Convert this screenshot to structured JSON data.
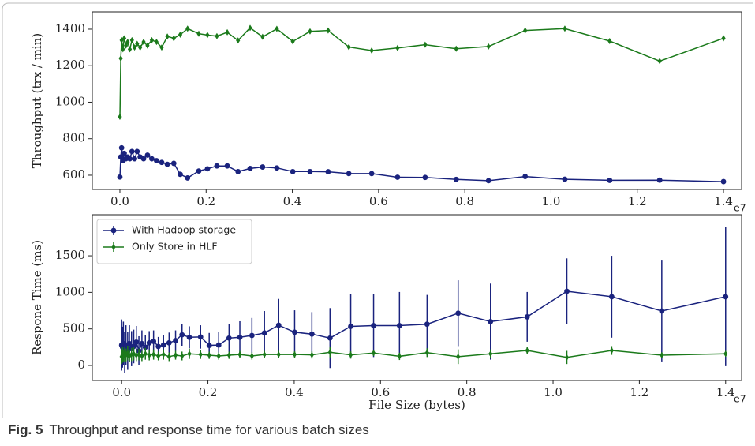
{
  "chart_data": [
    {
      "type": "line",
      "ylabel": "Throughput (trx / min)",
      "x_offset_label": "e7",
      "x": [
        0.0,
        0.002,
        0.004,
        0.007,
        0.01,
        0.014,
        0.018,
        0.023,
        0.028,
        0.034,
        0.04,
        0.047,
        0.055,
        0.064,
        0.074,
        0.085,
        0.097,
        0.11,
        0.125,
        0.14,
        0.157,
        0.183,
        0.203,
        0.225,
        0.249,
        0.274,
        0.302,
        0.331,
        0.364,
        0.401,
        0.441,
        0.483,
        0.531,
        0.584,
        0.644,
        0.708,
        0.78,
        0.855,
        0.94,
        1.032,
        1.136,
        1.252,
        1.4
      ],
      "xlim": [
        -0.064,
        1.442
      ],
      "xticks": [
        {
          "value": 0,
          "label": "0.0"
        },
        0.2,
        0.4,
        0.6,
        0.8,
        {
          "value": 1,
          "label": "1.0"
        },
        1.2,
        1.4
      ],
      "ylim": [
        522,
        1495
      ],
      "yticks": [
        600,
        800,
        1000,
        1200,
        1400
      ],
      "series": [
        {
          "name": "With Hadoop storage",
          "color": "#1a237e",
          "marker": "circle",
          "values": [
            590,
            700,
            750,
            680,
            720,
            690,
            700,
            690,
            730,
            690,
            730,
            700,
            690,
            710,
            690,
            680,
            670,
            660,
            665,
            605,
            585,
            623,
            635,
            651,
            651,
            620,
            637,
            645,
            640,
            620,
            620,
            619,
            609,
            609,
            589,
            588,
            577,
            570,
            593,
            578,
            572,
            573,
            565
          ]
        },
        {
          "name": "Only Store in HLF",
          "color": "#1b7a1b",
          "marker": "diamond",
          "values": [
            920,
            1240,
            1340,
            1290,
            1350,
            1310,
            1330,
            1290,
            1340,
            1300,
            1320,
            1300,
            1330,
            1310,
            1340,
            1330,
            1300,
            1360,
            1350,
            1370,
            1403,
            1375,
            1368,
            1362,
            1383,
            1338,
            1407,
            1358,
            1402,
            1333,
            1388,
            1393,
            1302,
            1283,
            1297,
            1315,
            1293,
            1305,
            1393,
            1403,
            1335,
            1225,
            1350
          ]
        }
      ]
    },
    {
      "type": "line",
      "ylabel": "Respone Time (ms)",
      "xlabel": "File Size (bytes)",
      "x_offset_label": "e7",
      "legend": "upper left",
      "x": [
        0.0,
        0.002,
        0.004,
        0.007,
        0.01,
        0.014,
        0.018,
        0.023,
        0.028,
        0.034,
        0.04,
        0.047,
        0.055,
        0.064,
        0.074,
        0.085,
        0.097,
        0.11,
        0.125,
        0.14,
        0.157,
        0.183,
        0.203,
        0.225,
        0.249,
        0.274,
        0.302,
        0.331,
        0.364,
        0.401,
        0.441,
        0.483,
        0.531,
        0.584,
        0.644,
        0.708,
        0.78,
        0.855,
        0.94,
        1.032,
        1.136,
        1.252,
        1.4
      ],
      "xlim": [
        -0.068,
        1.437
      ],
      "xticks": [
        {
          "value": 0,
          "label": "0.0"
        },
        0.2,
        0.4,
        0.6,
        0.8,
        {
          "value": 1,
          "label": "1.0"
        },
        1.2,
        1.4
      ],
      "ylim": [
        -205,
        2062
      ],
      "yticks": [
        0,
        500,
        1000,
        1500
      ],
      "series": [
        {
          "name": "With Hadoop storage",
          "color": "#1a237e",
          "marker": "circle",
          "values": [
            280,
            250,
            300,
            180,
            280,
            200,
            300,
            230,
            260,
            320,
            200,
            300,
            250,
            310,
            330,
            260,
            280,
            310,
            340,
            420,
            385,
            390,
            275,
            280,
            375,
            385,
            410,
            445,
            550,
            455,
            430,
            375,
            535,
            545,
            545,
            565,
            715,
            600,
            665,
            1015,
            940,
            745,
            940
          ],
          "errors": [
            350,
            280,
            300,
            280,
            270,
            260,
            250,
            240,
            230,
            220,
            200,
            180,
            170,
            160,
            150,
            130,
            140,
            140,
            140,
            150,
            150,
            160,
            170,
            180,
            190,
            220,
            240,
            300,
            360,
            300,
            300,
            410,
            440,
            430,
            460,
            400,
            450,
            520,
            340,
            450,
            560,
            690,
            950
          ]
        },
        {
          "name": "Only Store in HLF",
          "color": "#1b7a1b",
          "marker": "diamond",
          "values": [
            120,
            150,
            130,
            160,
            140,
            170,
            130,
            150,
            160,
            140,
            150,
            130,
            160,
            140,
            150,
            130,
            150,
            120,
            140,
            130,
            160,
            150,
            140,
            130,
            140,
            150,
            130,
            150,
            150,
            150,
            145,
            180,
            145,
            170,
            125,
            175,
            120,
            160,
            205,
            110,
            205,
            140,
            160
          ],
          "errors": [
            100,
            110,
            90,
            100,
            90,
            100,
            80,
            90,
            90,
            80,
            80,
            70,
            80,
            70,
            70,
            60,
            70,
            60,
            60,
            60,
            70,
            60,
            50,
            50,
            50,
            50,
            50,
            50,
            50,
            45,
            50,
            70,
            50,
            40,
            50,
            60,
            100,
            60,
            45,
            90,
            60,
            40,
            40
          ]
        }
      ]
    }
  ],
  "caption": {
    "label": "Fig. 5",
    "text": "Throughput and response time for various batch sizes"
  }
}
